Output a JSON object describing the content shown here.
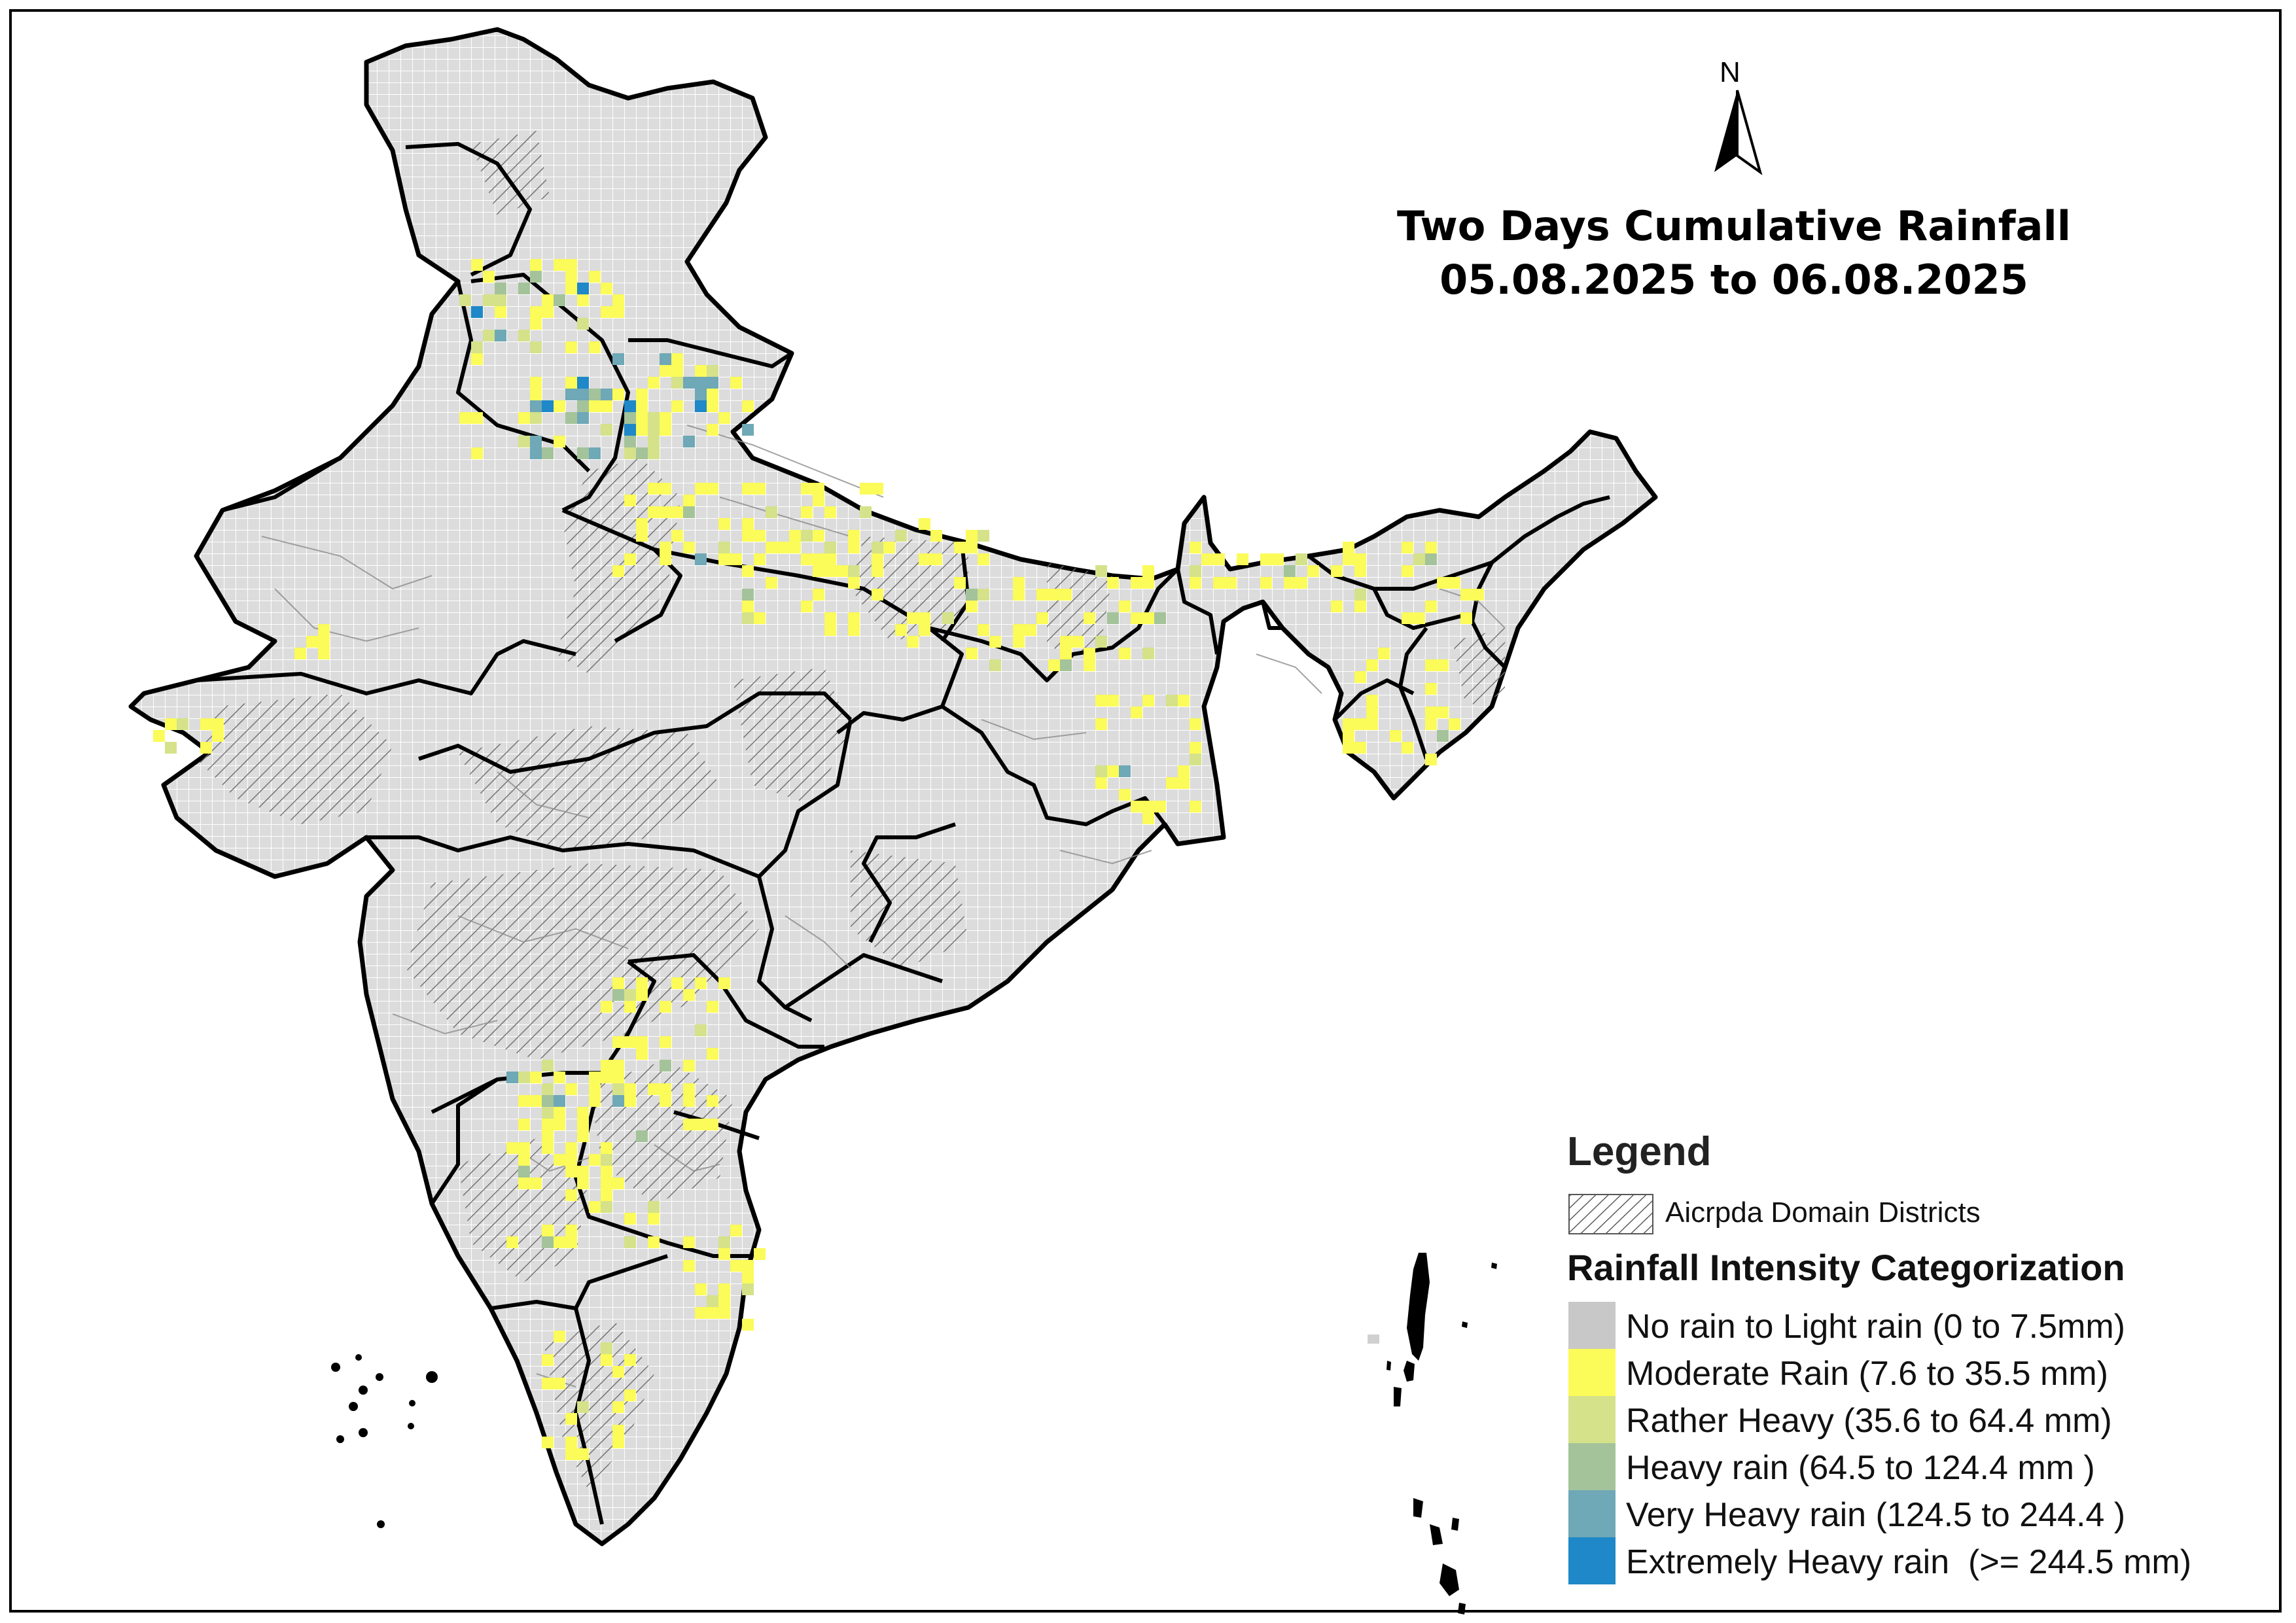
{
  "title": {
    "line1": "Two Days Cumulative Rainfall",
    "line2": "05.08.2025 to 06.08.2025"
  },
  "north_arrow": {
    "label": "N"
  },
  "legend": {
    "title": "Legend",
    "hatch_label": "Aicrpda Domain Districts",
    "subtitle": "Rainfall Intensity Categorization",
    "categories": [
      {
        "label": "No rain to Light rain (0 to 7.5mm)",
        "color": "#c8c8c8"
      },
      {
        "label": "Moderate Rain (7.6 to 35.5 mm)",
        "color": "#fbfb5a"
      },
      {
        "label": "Rather Heavy (35.6 to 64.4 mm)",
        "color": "#d5e28a"
      },
      {
        "label": "Heavy rain (64.5 to 124.4 mm )",
        "color": "#a4c39a"
      },
      {
        "label": "Very Heavy rain (124.5 to 244.4 )",
        "color": "#6fa8b6"
      },
      {
        "label": "Extremely Heavy rain  (>= 244.5 mm)",
        "color": "#1e88c8"
      }
    ]
  },
  "map_colors": {
    "base_fill": "#dcdcdc",
    "border": "#000000",
    "district_line": "#8c8c8c",
    "hatch": "#6e6e6e"
  }
}
